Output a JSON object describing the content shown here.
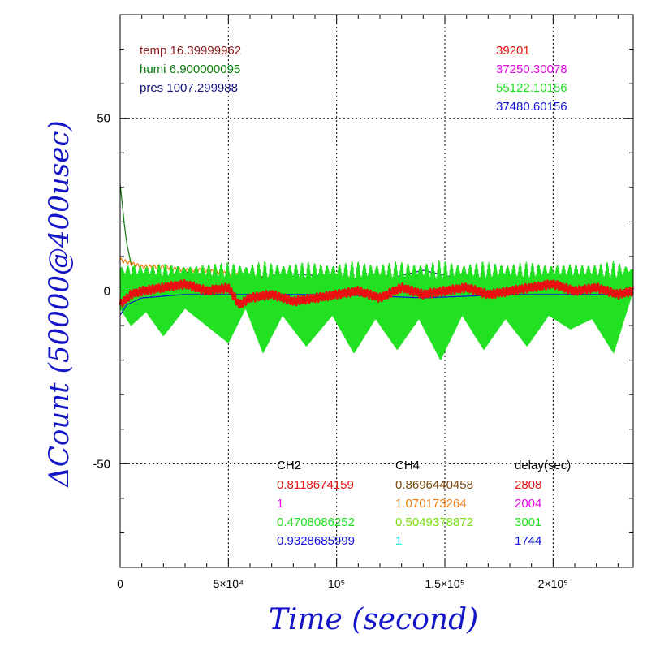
{
  "chart_data": {
    "type": "line",
    "xlabel": "Time (second)",
    "ylabel": "ΔCount (50000@400usec)",
    "xlim": [
      0,
      237000
    ],
    "ylim": [
      -80,
      80
    ],
    "grid": true,
    "xticks": [
      {
        "value": 0,
        "label": "0"
      },
      {
        "value": 50000,
        "label": "5×10⁴"
      },
      {
        "value": 100000,
        "label": "10⁵"
      },
      {
        "value": 150000,
        "label": "1.5×10⁵"
      },
      {
        "value": 200000,
        "label": "2×10⁵"
      }
    ],
    "yticks": [
      {
        "value": 50,
        "label": "50"
      },
      {
        "value": 0,
        "label": "0"
      },
      {
        "value": -50,
        "label": "-50"
      }
    ],
    "environment_labels": [
      {
        "text": "temp 16.39999962",
        "color": "#8b1a1a"
      },
      {
        "text": "humi 6.900000095",
        "color": "#0a7a0a"
      },
      {
        "text": "pres 1007.299988",
        "color": "#14147a"
      }
    ],
    "channel_values": [
      {
        "text": "39201",
        "color": "#e81010"
      },
      {
        "text": "37250.30078",
        "color": "#e010e0"
      },
      {
        "text": "55122.10156",
        "color": "#22e022"
      },
      {
        "text": "37480.60156",
        "color": "#1010e0"
      }
    ],
    "table": {
      "headers": [
        "CH2",
        "CH4",
        "delay(sec)"
      ],
      "rows": [
        {
          "ch2": "0.8118674159",
          "ch2_color": "#e81010",
          "ch4": "0.8696440458",
          "ch4_color": "#7a4a10",
          "delay": "2808",
          "delay_color": "#e81010"
        },
        {
          "ch2": "1",
          "ch2_color": "#e010e0",
          "ch4": "1.070173264",
          "ch4_color": "#f08010",
          "delay": "2004",
          "delay_color": "#e010e0"
        },
        {
          "ch2": "0.4708086252",
          "ch2_color": "#22e022",
          "ch4": "0.5049378872",
          "ch4_color": "#7ae010",
          "delay": "3001",
          "delay_color": "#22e022"
        },
        {
          "ch2": "0.9328685999",
          "ch2_color": "#1010e0",
          "ch4": "1",
          "ch4_color": "#10e0e0",
          "delay": "1744",
          "delay_color": "#1010e0"
        }
      ]
    },
    "series": [
      {
        "color": "#14147a",
        "x": [
          0,
          20000,
          40000,
          60000,
          80000,
          100000,
          120000,
          140000,
          160000,
          180000,
          200000,
          220000,
          237000
        ],
        "y": [
          0,
          2,
          4,
          3,
          5,
          4,
          3,
          6,
          3,
          1,
          2,
          0,
          1
        ]
      },
      {
        "color": "#0a7a0a",
        "x": [
          0,
          1000,
          2000,
          3000,
          5000,
          7000,
          10000,
          15000,
          20000,
          40000,
          80000,
          120000,
          160000,
          200000,
          237000
        ],
        "y": [
          31,
          25,
          19,
          14,
          8,
          4,
          2,
          1,
          0.5,
          0.5,
          0.5,
          0.5,
          0.5,
          0.5,
          0.5
        ]
      },
      {
        "color": "#f08010",
        "x": [
          0,
          10000,
          20000,
          30000,
          40000,
          50000,
          60000,
          80000,
          100000,
          120000,
          140000,
          160000,
          180000,
          200000,
          220000,
          237000
        ],
        "y": [
          9,
          7,
          7,
          6,
          6,
          5,
          4,
          3,
          2,
          4,
          3,
          2,
          4,
          3,
          2,
          3
        ]
      },
      {
        "color": "#7a4a10",
        "x": [
          0,
          10000,
          20000,
          30000,
          40000,
          50000,
          60000,
          70000,
          80000,
          90000,
          100000,
          110000,
          120000,
          130000,
          140000,
          150000,
          160000,
          170000,
          180000,
          190000,
          200000,
          210000,
          220000,
          230000,
          237000
        ],
        "y": [
          4,
          3,
          3,
          5,
          4,
          2,
          3,
          4,
          3,
          2,
          3,
          1,
          2,
          3,
          2,
          1,
          2,
          3,
          1,
          2,
          1,
          2,
          0,
          1,
          1
        ]
      },
      {
        "color": "#22e022",
        "x": [
          0,
          5000,
          12000,
          20000,
          30000,
          40000,
          50000,
          58000,
          66000,
          75000,
          86000,
          98000,
          108000,
          118000,
          128000,
          138000,
          148000,
          158000,
          168000,
          178000,
          188000,
          198000,
          208000,
          218000,
          228000,
          237000
        ],
        "y": [
          -5,
          -10,
          -6,
          -13,
          -5,
          -10,
          -15,
          -5,
          -18,
          -7,
          -16,
          -7,
          -18,
          -8,
          -17,
          -8,
          -20,
          -7,
          -17,
          -8,
          -16,
          -7,
          -11,
          -8,
          -18,
          0
        ]
      },
      {
        "color": "#1010e0",
        "x": [
          0,
          3000,
          10000,
          30000,
          60000,
          100000,
          140000,
          180000,
          220000,
          237000
        ],
        "y": [
          -7,
          -4,
          -2,
          -1,
          -1,
          -1,
          -2,
          -1,
          -1,
          -1
        ]
      },
      {
        "color": "#e81010",
        "x": [
          0,
          5000,
          10000,
          20000,
          30000,
          40000,
          50000,
          55000,
          60000,
          70000,
          80000,
          90000,
          100000,
          110000,
          120000,
          130000,
          140000,
          150000,
          160000,
          170000,
          180000,
          190000,
          200000,
          210000,
          220000,
          230000,
          237000
        ],
        "y": [
          -4,
          -1,
          0,
          1,
          2,
          0,
          1,
          -4,
          -2,
          -1,
          -3,
          -2,
          -1,
          0,
          -2,
          1,
          -1,
          0,
          1,
          -1,
          0,
          1,
          2,
          0,
          1,
          -1,
          0
        ]
      }
    ]
  }
}
